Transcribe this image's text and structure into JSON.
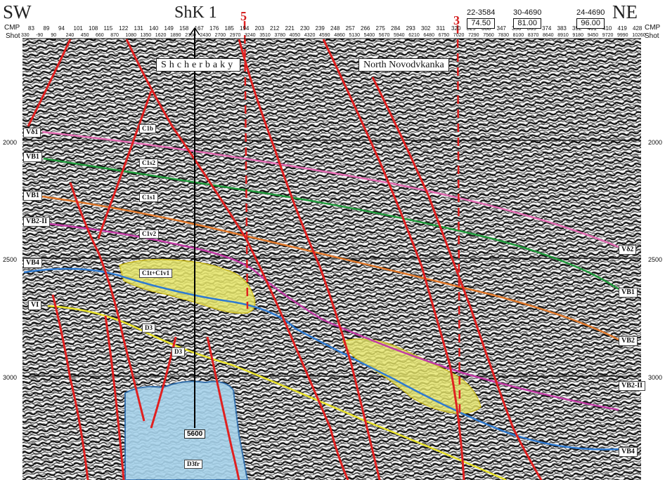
{
  "header": {
    "left_direction": "SW",
    "right_direction": "NE",
    "well_name": "ShK 1",
    "fault_left": "5",
    "fault_right": "3",
    "cmp_label": "CMP",
    "shot_label": "Shot",
    "cmp_values": [
      "83",
      "89",
      "94",
      "101",
      "108",
      "115",
      "122",
      "131",
      "140",
      "149",
      "158",
      "167",
      "176",
      "185",
      "194",
      "203",
      "212",
      "221",
      "230",
      "239",
      "248",
      "257",
      "266",
      "275",
      "284",
      "293",
      "302",
      "311",
      "320",
      "329",
      "338",
      "347",
      "356",
      "365",
      "374",
      "383",
      "392",
      "401",
      "410",
      "419",
      "428"
    ],
    "shot_values": [
      "330",
      "-90",
      "90",
      "240",
      "450",
      "660",
      "870",
      "1080",
      "1350",
      "1620",
      "1890",
      "2160",
      "2430",
      "2700",
      "2970",
      "3240",
      "3510",
      "3780",
      "4050",
      "4320",
      "4590",
      "4860",
      "5130",
      "5400",
      "5670",
      "5940",
      "6210",
      "6480",
      "6750",
      "7020",
      "7290",
      "7560",
      "7830",
      "8100",
      "8370",
      "8640",
      "8910",
      "9180",
      "9450",
      "9720",
      "9990",
      "10260"
    ]
  },
  "wells": [
    {
      "name": "22-3584",
      "value": "74.50"
    },
    {
      "name": "30-4690",
      "value": "81.00"
    },
    {
      "name": "24-4690",
      "value": "96.00"
    }
  ],
  "area_labels": {
    "left": "Shcherbaky",
    "right": "North Novodvkanka"
  },
  "time_axis": {
    "left": [
      "2000",
      "2500",
      "3000"
    ],
    "right": [
      "2000",
      "2500",
      "3000"
    ]
  },
  "left_horizons": [
    "Vδ1",
    "VB1",
    "VB1",
    "VB2-II",
    "VB4",
    "VI"
  ],
  "right_horizons": [
    "Vδ2",
    "VB1",
    "VB2",
    "VB2-II",
    "VB4"
  ],
  "unit_labels": [
    "C1b",
    "C1s2",
    "C1s1",
    "C1v2",
    "C1t+C1v1",
    "D3",
    "D3",
    "D3fr"
  ],
  "depth_label": "5600",
  "colors": {
    "fault": "#e02020",
    "pink": "#e46cb4",
    "green": "#1f9a3a",
    "orange": "#e0782a",
    "magenta": "#c23aa6",
    "blue": "#2e7ad1",
    "yellow": "#e8e22a",
    "reef": "#e8e86c",
    "salt": "#a8d4ec"
  }
}
